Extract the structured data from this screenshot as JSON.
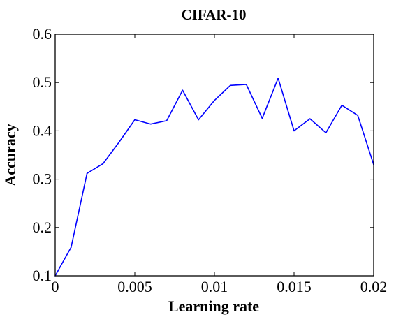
{
  "chart_data": {
    "type": "line",
    "title": "CIFAR-10",
    "xlabel": "Learning rate",
    "ylabel": "Accuracy",
    "xlim": [
      0,
      0.02
    ],
    "ylim": [
      0.1,
      0.6
    ],
    "x_ticks": [
      0,
      0.005,
      0.01,
      0.015,
      0.02
    ],
    "x_tick_labels": [
      "0",
      "0.005",
      "0.01",
      "0.015",
      "0.02"
    ],
    "y_ticks": [
      0.1,
      0.2,
      0.3,
      0.4,
      0.5,
      0.6
    ],
    "y_tick_labels": [
      "0.1",
      "0.2",
      "0.3",
      "0.4",
      "0.5",
      "0.6"
    ],
    "grid": false,
    "legend": "none",
    "series": [
      {
        "color": "#0000ff",
        "x": [
          0,
          0.001,
          0.002,
          0.003,
          0.004,
          0.005,
          0.006,
          0.007,
          0.008,
          0.009,
          0.01,
          0.011,
          0.012,
          0.013,
          0.014,
          0.015,
          0.016,
          0.017,
          0.018,
          0.019,
          0.02
        ],
        "y": [
          0.1,
          0.159,
          0.312,
          0.332,
          0.376,
          0.423,
          0.414,
          0.421,
          0.484,
          0.423,
          0.463,
          0.494,
          0.496,
          0.426,
          0.509,
          0.4,
          0.425,
          0.396,
          0.453,
          0.432,
          0.33
        ]
      }
    ]
  }
}
